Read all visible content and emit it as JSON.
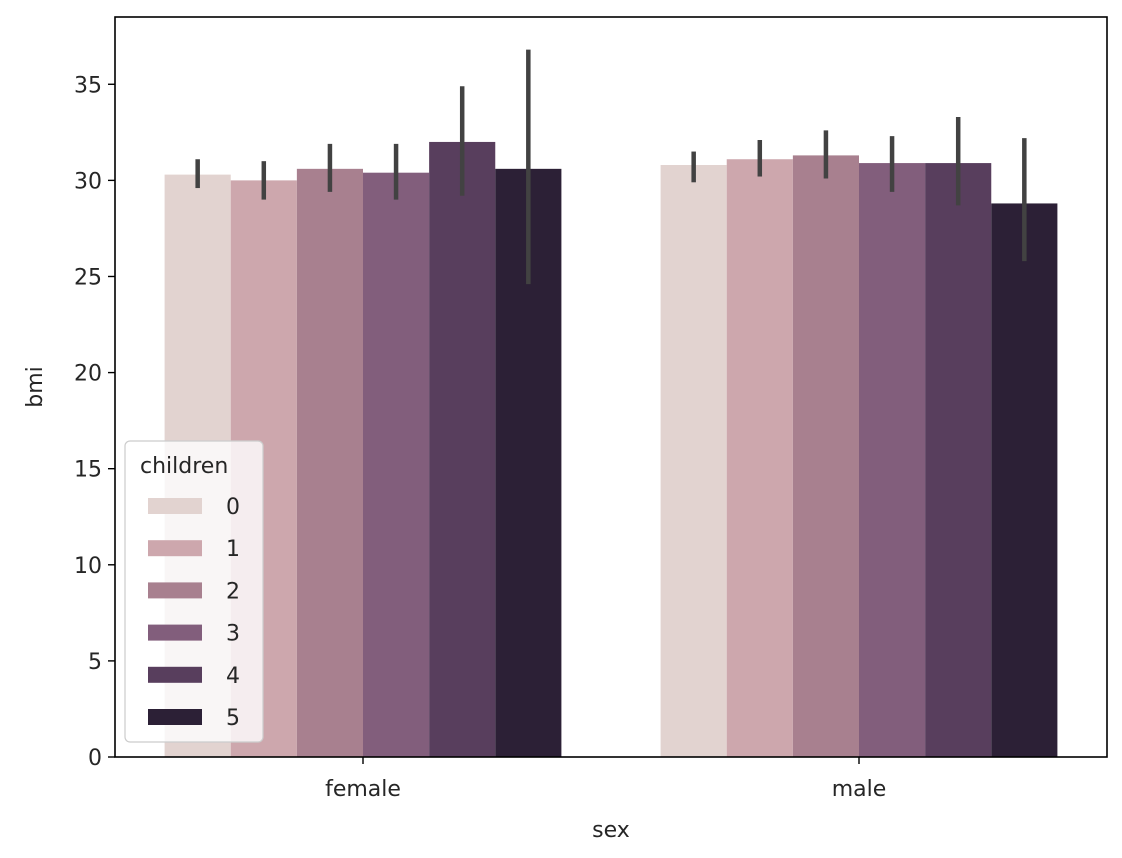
{
  "chart_data": {
    "type": "bar",
    "categories": [
      "female",
      "male"
    ],
    "xlabel": "sex",
    "ylabel": "bmi",
    "ylim": [
      0,
      38.5
    ],
    "yticks": [
      0,
      5,
      10,
      15,
      20,
      25,
      30,
      35
    ],
    "grid": false,
    "legend": {
      "title": "children",
      "placement": "lower-left"
    },
    "series": [
      {
        "name": "0",
        "color": "#e2d3d0",
        "values": [
          30.3,
          30.8
        ],
        "ci": [
          [
            29.6,
            31.1
          ],
          [
            29.9,
            31.5
          ]
        ]
      },
      {
        "name": "1",
        "color": "#cda7ad",
        "values": [
          30.0,
          31.1
        ],
        "ci": [
          [
            29.0,
            31.0
          ],
          [
            30.2,
            32.1
          ]
        ]
      },
      {
        "name": "2",
        "color": "#a8808f",
        "values": [
          30.6,
          31.3
        ],
        "ci": [
          [
            29.4,
            31.9
          ],
          [
            30.1,
            32.6
          ]
        ]
      },
      {
        "name": "3",
        "color": "#825e7c",
        "values": [
          30.4,
          30.9
        ],
        "ci": [
          [
            29.0,
            31.9
          ],
          [
            29.4,
            32.3
          ]
        ]
      },
      {
        "name": "4",
        "color": "#583e5d",
        "values": [
          32.0,
          30.9
        ],
        "ci": [
          [
            29.2,
            34.9
          ],
          [
            28.7,
            33.3
          ]
        ]
      },
      {
        "name": "5",
        "color": "#2c2036",
        "values": [
          30.6,
          28.8
        ],
        "ci": [
          [
            24.6,
            36.8
          ],
          [
            25.8,
            32.2
          ]
        ]
      }
    ]
  }
}
